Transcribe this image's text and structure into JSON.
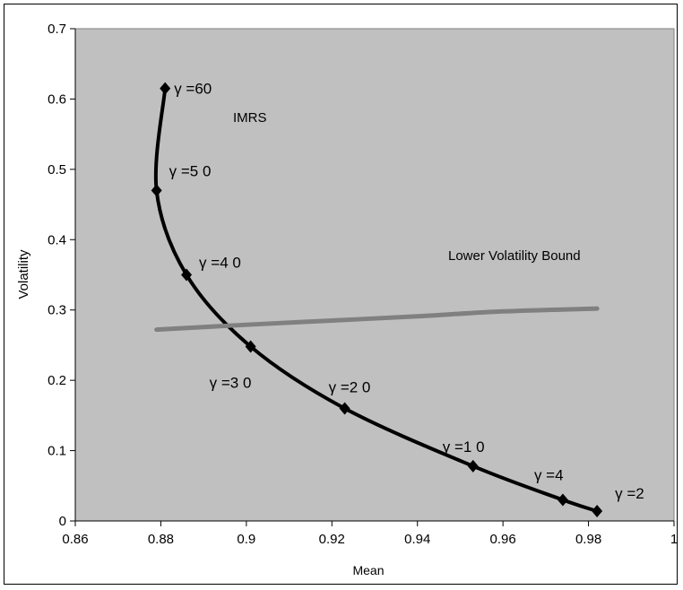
{
  "chart_data": {
    "type": "line",
    "title": "",
    "xlabel": "Mean",
    "ylabel": "Volatility",
    "xlim": [
      0.86,
      1.0
    ],
    "ylim": [
      0,
      0.7
    ],
    "x_ticks": [
      "0.86",
      "0.88",
      "0.9",
      "0.92",
      "0.94",
      "0.96",
      "0.98",
      "1"
    ],
    "y_ticks": [
      "0",
      "0.1",
      "0.2",
      "0.3",
      "0.4",
      "0.5",
      "0.6",
      "0.7"
    ],
    "plot_background": "#c0c0c0",
    "grid": false,
    "series": [
      {
        "name": "IMRS",
        "color": "#000000",
        "marker": "diamond",
        "points": [
          {
            "x": 0.881,
            "y": 0.615,
            "label": "γ =60"
          },
          {
            "x": 0.879,
            "y": 0.47,
            "label": "γ =5 0"
          },
          {
            "x": 0.886,
            "y": 0.35,
            "label": "γ =4 0"
          },
          {
            "x": 0.901,
            "y": 0.248,
            "label": "γ =3 0"
          },
          {
            "x": 0.923,
            "y": 0.16,
            "label": "γ =2 0"
          },
          {
            "x": 0.953,
            "y": 0.078,
            "label": "γ =1 0"
          },
          {
            "x": 0.974,
            "y": 0.03,
            "label": "γ =4"
          },
          {
            "x": 0.982,
            "y": 0.014,
            "label": "γ =2"
          }
        ]
      },
      {
        "name": "Lower Volatility Bound",
        "color": "#808080",
        "marker": "none",
        "points": [
          {
            "x": 0.879,
            "y": 0.272
          },
          {
            "x": 0.9,
            "y": 0.279
          },
          {
            "x": 0.92,
            "y": 0.285
          },
          {
            "x": 0.94,
            "y": 0.291
          },
          {
            "x": 0.96,
            "y": 0.298
          },
          {
            "x": 0.982,
            "y": 0.302
          }
        ]
      }
    ]
  }
}
